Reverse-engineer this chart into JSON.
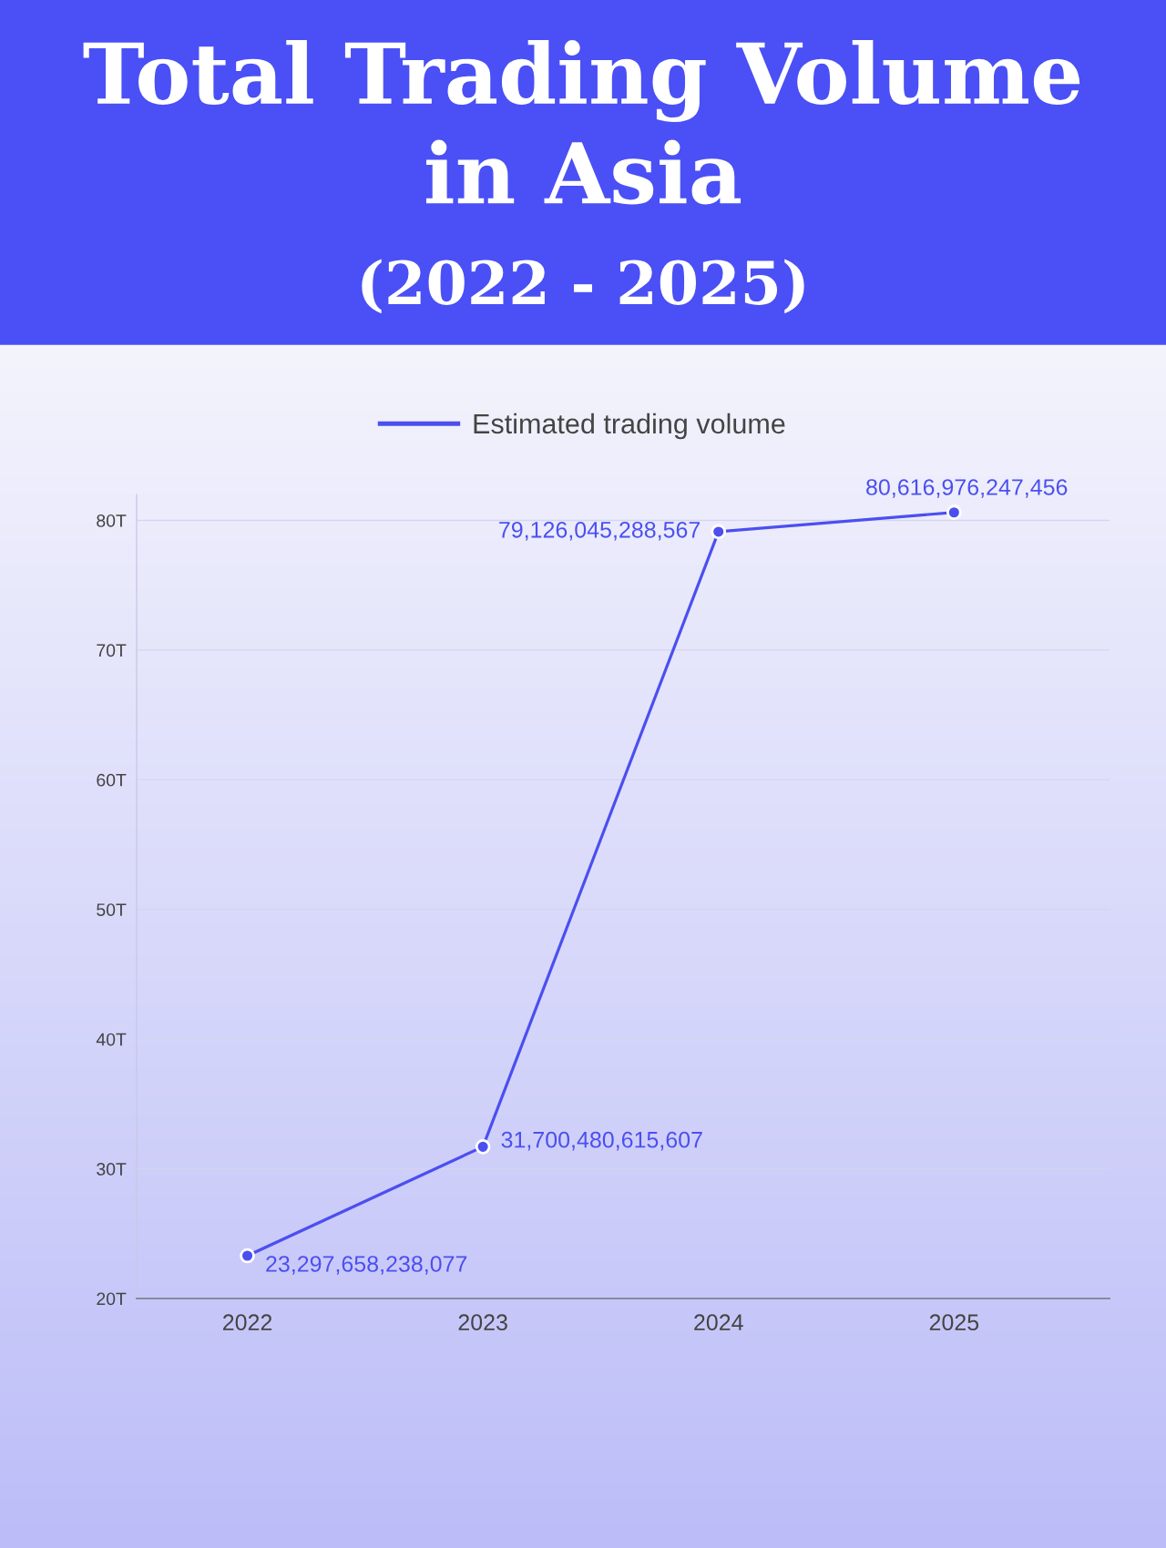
{
  "chart_data": {
    "type": "line",
    "title": "Total Trading Volume\nin Asia",
    "subtitle": "(2022 - 2025)",
    "categories": [
      "2022",
      "2023",
      "2024",
      "2025"
    ],
    "series": [
      {
        "name": "Estimated trading volume",
        "color": "#4b4ff0",
        "values": [
          23297658238077,
          31700480615607,
          79126045288567,
          80616976247456
        ],
        "value_labels": [
          "23,297,658,238,077",
          "31,700,480,615,607",
          "79,126,045,288,567",
          "80,616,976,247,456"
        ]
      }
    ],
    "ylim": [
      20000000000000,
      82000000000000
    ],
    "yticks": [
      {
        "value": 20000000000000,
        "label": "20T"
      },
      {
        "value": 30000000000000,
        "label": "30T"
      },
      {
        "value": 40000000000000,
        "label": "40T"
      },
      {
        "value": 50000000000000,
        "label": "50T"
      },
      {
        "value": 60000000000000,
        "label": "60T"
      },
      {
        "value": 70000000000000,
        "label": "70T"
      },
      {
        "value": 80000000000000,
        "label": "80T"
      }
    ],
    "grid": "y",
    "legend": "top",
    "marker": "circle",
    "line_style": "solid"
  }
}
